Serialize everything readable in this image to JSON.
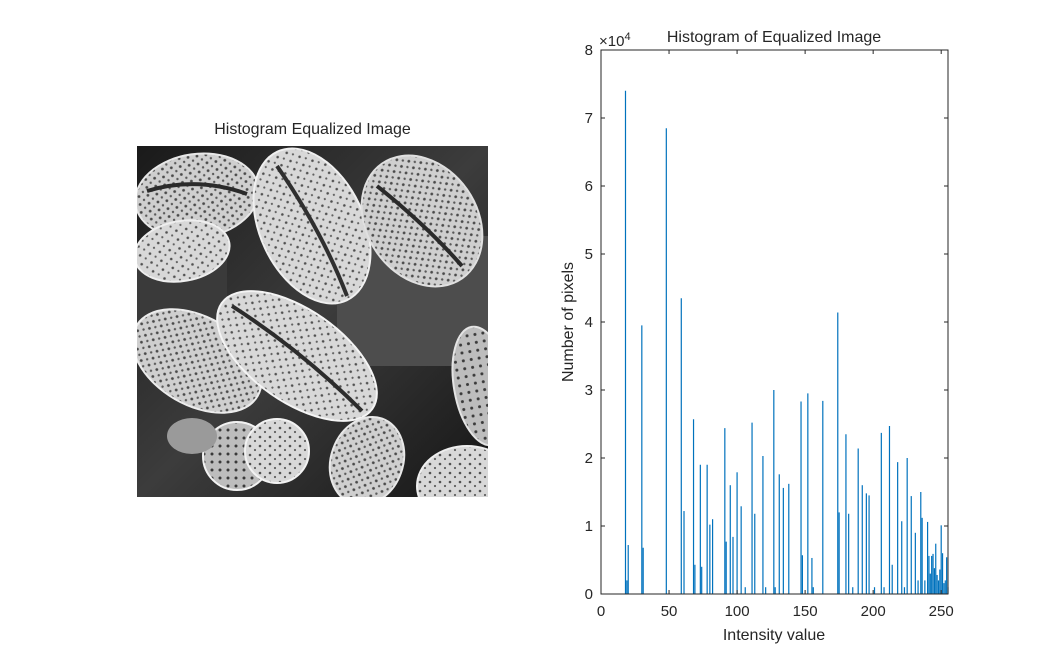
{
  "image_panel": {
    "title": "Histogram Equalized Image"
  },
  "chart_data": {
    "type": "bar",
    "title": "Histogram of Equalized Image",
    "xlabel": "Intensity value",
    "ylabel": "Number of pixels",
    "exponent_label": "×10",
    "exponent_power": "4",
    "xlim": [
      0,
      255
    ],
    "ylim": [
      0,
      80000
    ],
    "xticks": [
      0,
      50,
      100,
      150,
      200,
      250
    ],
    "yticks": [
      0,
      10000,
      20000,
      30000,
      40000,
      50000,
      60000,
      70000,
      80000
    ],
    "ytick_labels": [
      "0",
      "1",
      "2",
      "3",
      "4",
      "5",
      "6",
      "7",
      "8"
    ],
    "bar_color": "#0072bd",
    "grid": false,
    "series": [
      {
        "x": [
          18,
          19,
          20,
          30,
          31,
          48,
          59,
          61,
          68,
          69,
          73,
          74,
          78,
          80,
          82,
          91,
          92,
          95,
          97,
          100,
          103,
          106,
          111,
          113,
          119,
          121,
          127,
          128,
          131,
          134,
          138,
          147,
          148,
          152,
          155,
          156,
          163,
          174,
          175,
          180,
          182,
          185,
          189,
          192,
          195,
          197,
          201,
          206,
          208,
          212,
          214,
          218,
          221,
          223,
          225,
          228,
          231,
          233,
          235,
          236,
          238,
          240,
          241,
          242,
          243,
          244,
          245,
          246,
          247,
          248,
          249,
          250,
          251,
          252,
          253,
          254,
          255
        ],
        "values": [
          74000,
          2000,
          7200,
          39500,
          6800,
          68500,
          43500,
          12200,
          25700,
          4300,
          19000,
          4000,
          19000,
          10200,
          11000,
          24400,
          7700,
          16000,
          8400,
          17900,
          12900,
          1000,
          25200,
          11800,
          20300,
          1000,
          30000,
          1000,
          17600,
          15600,
          16200,
          28300,
          5700,
          29500,
          5300,
          1000,
          28400,
          41400,
          12000,
          23500,
          11800,
          1000,
          21400,
          16000,
          14800,
          14500,
          1000,
          23700,
          1000,
          24700,
          4300,
          19400,
          10700,
          1000,
          20000,
          14400,
          9000,
          2000,
          15000,
          11200,
          2000,
          10600,
          5600,
          3000,
          5600,
          5900,
          3800,
          7400,
          2800,
          2000,
          3600,
          10100,
          6000,
          1600,
          2000,
          5400,
          1000
        ]
      }
    ]
  }
}
